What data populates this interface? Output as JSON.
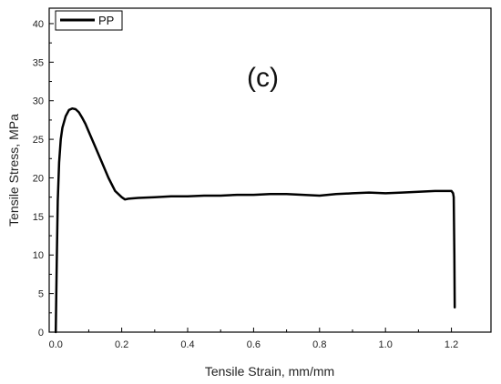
{
  "chart_data": {
    "type": "line",
    "title": "",
    "annotation": "(c)",
    "xlabel": "Tensile Strain, mm/mm",
    "ylabel": "Tensile Stress, MPa",
    "xlim": [
      -0.02,
      1.32
    ],
    "ylim": [
      0,
      42
    ],
    "x_ticks": [
      0.0,
      0.2,
      0.4,
      0.6,
      0.8,
      1.0,
      1.2
    ],
    "x_tick_labels": [
      "0.0",
      "0.2",
      "0.4",
      "0.6",
      "0.8",
      "1.0",
      "1.2"
    ],
    "y_ticks": [
      0,
      5,
      10,
      15,
      20,
      25,
      30,
      35,
      40
    ],
    "y_tick_labels": [
      "0",
      "5",
      "10",
      "15",
      "20",
      "25",
      "30",
      "35",
      "40"
    ],
    "grid": false,
    "legend_position": "top-left",
    "series": [
      {
        "name": "PP",
        "color": "#000000",
        "x": [
          0.0,
          0.003,
          0.006,
          0.01,
          0.015,
          0.02,
          0.03,
          0.04,
          0.05,
          0.06,
          0.07,
          0.08,
          0.09,
          0.1,
          0.12,
          0.14,
          0.16,
          0.18,
          0.2,
          0.21,
          0.22,
          0.25,
          0.3,
          0.35,
          0.4,
          0.45,
          0.5,
          0.55,
          0.6,
          0.65,
          0.7,
          0.75,
          0.8,
          0.85,
          0.9,
          0.95,
          1.0,
          1.05,
          1.1,
          1.15,
          1.2,
          1.205,
          1.207,
          1.209,
          1.21
        ],
        "y": [
          0.0,
          9.0,
          17.0,
          22.0,
          25.0,
          26.5,
          28.0,
          28.8,
          29.0,
          28.9,
          28.5,
          27.8,
          27.0,
          26.0,
          24.0,
          22.0,
          20.0,
          18.3,
          17.5,
          17.2,
          17.3,
          17.4,
          17.5,
          17.6,
          17.6,
          17.7,
          17.7,
          17.8,
          17.8,
          17.9,
          17.9,
          17.8,
          17.7,
          17.9,
          18.0,
          18.1,
          18.0,
          18.1,
          18.2,
          18.3,
          18.3,
          18.0,
          17.5,
          10.0,
          3.2
        ]
      }
    ]
  }
}
